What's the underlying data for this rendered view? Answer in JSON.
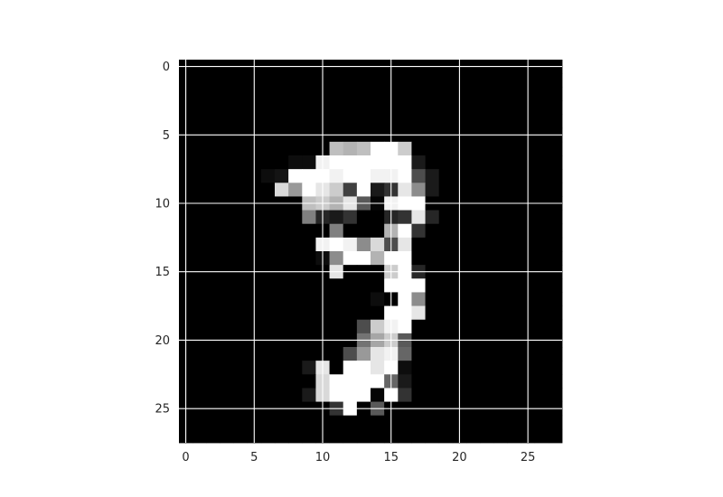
{
  "chart_data": {
    "type": "heatmap",
    "title": "",
    "xlabel": "",
    "ylabel": "",
    "colormap": "gray",
    "grid": true,
    "grid_color": "#ffffff",
    "xlim": [
      -0.5,
      27.5
    ],
    "ylim": [
      27.5,
      -0.5
    ],
    "xticks": [
      0,
      5,
      10,
      15,
      20,
      25
    ],
    "yticks": [
      0,
      5,
      10,
      15,
      20,
      25
    ],
    "xtick_labels": [
      "0",
      "5",
      "10",
      "15",
      "20",
      "25"
    ],
    "ytick_labels": [
      "0",
      "5",
      "10",
      "15",
      "20",
      "25"
    ],
    "values": [
      [
        0,
        0,
        0,
        0,
        0,
        0,
        0,
        0,
        0,
        0,
        0,
        0,
        0,
        0,
        0,
        0,
        0,
        0,
        0,
        0,
        0,
        0,
        0,
        0,
        0,
        0,
        0,
        0
      ],
      [
        0,
        0,
        0,
        0,
        0,
        0,
        0,
        0,
        0,
        0,
        0,
        0,
        0,
        0,
        0,
        0,
        0,
        0,
        0,
        0,
        0,
        0,
        0,
        0,
        0,
        0,
        0,
        0
      ],
      [
        0,
        0,
        0,
        0,
        0,
        0,
        0,
        0,
        0,
        0,
        0,
        0,
        0,
        0,
        0,
        0,
        0,
        0,
        0,
        0,
        0,
        0,
        0,
        0,
        0,
        0,
        0,
        0
      ],
      [
        0,
        0,
        0,
        0,
        0,
        0,
        0,
        0,
        0,
        0,
        0,
        0,
        0,
        0,
        0,
        0,
        0,
        0,
        0,
        0,
        0,
        0,
        0,
        0,
        0,
        0,
        0,
        0
      ],
      [
        0,
        0,
        0,
        0,
        0,
        0,
        0,
        0,
        0,
        0,
        0,
        0,
        0,
        0,
        0,
        0,
        0,
        0,
        0,
        0,
        0,
        0,
        0,
        0,
        0,
        0,
        0,
        0
      ],
      [
        0,
        0,
        0,
        0,
        0,
        0,
        0,
        0,
        0,
        0,
        0,
        0,
        0,
        0,
        0,
        0,
        0,
        0,
        0,
        0,
        0,
        0,
        0,
        0,
        0,
        0,
        0,
        0
      ],
      [
        0,
        0,
        0,
        0,
        0,
        0,
        0,
        0,
        0,
        0,
        0,
        0.75,
        0.7,
        0.75,
        1,
        1,
        0.8,
        0,
        0,
        0,
        0,
        0,
        0,
        0,
        0,
        0,
        0,
        0
      ],
      [
        0,
        0,
        0,
        0,
        0,
        0,
        0,
        0,
        0.05,
        0.05,
        0.95,
        1,
        1,
        1,
        1,
        1,
        1,
        0.1,
        0,
        0,
        0,
        0,
        0,
        0,
        0,
        0,
        0,
        0
      ],
      [
        0,
        0,
        0,
        0,
        0,
        0,
        0.05,
        0.08,
        1,
        1,
        1,
        0.95,
        1,
        1,
        0.95,
        0.95,
        1,
        0.3,
        0.1,
        0,
        0,
        0,
        0,
        0,
        0,
        0,
        0,
        0
      ],
      [
        0,
        0,
        0,
        0,
        0,
        0,
        0,
        0.85,
        0.6,
        1,
        0.9,
        0.8,
        0.25,
        1,
        0.1,
        0.2,
        0.9,
        0.55,
        0.1,
        0,
        0,
        0,
        0,
        0,
        0,
        0,
        0,
        0
      ],
      [
        0,
        0,
        0,
        0,
        0,
        0,
        0,
        0,
        0,
        0.75,
        0.8,
        0.7,
        0.9,
        0.35,
        0.02,
        0.95,
        1,
        1,
        0,
        0,
        0,
        0,
        0,
        0,
        0,
        0,
        0,
        0
      ],
      [
        0,
        0,
        0,
        0,
        0,
        0,
        0,
        0,
        0,
        0.5,
        0.15,
        0.1,
        0.2,
        0,
        0,
        0.15,
        0.2,
        0.9,
        0.15,
        0,
        0,
        0,
        0,
        0,
        0,
        0,
        0,
        0
      ],
      [
        0,
        0,
        0,
        0,
        0,
        0,
        0,
        0,
        0,
        0,
        0,
        0.5,
        0,
        0,
        0,
        0.7,
        1,
        0.2,
        0,
        0,
        0,
        0,
        0,
        0,
        0,
        0,
        0,
        0
      ],
      [
        0,
        0,
        0,
        0,
        0,
        0,
        0,
        0,
        0,
        0,
        0.95,
        1,
        0.95,
        0.55,
        0.85,
        0.3,
        0.9,
        0,
        0,
        0,
        0,
        0,
        0,
        0,
        0,
        0,
        0,
        0
      ],
      [
        0,
        0,
        0,
        0,
        0,
        0,
        0,
        0,
        0,
        0,
        0.05,
        0.55,
        1,
        1,
        0.7,
        1,
        1,
        0,
        0,
        0,
        0,
        0,
        0,
        0,
        0,
        0,
        0,
        0
      ],
      [
        0,
        0,
        0,
        0,
        0,
        0,
        0,
        0,
        0,
        0,
        0,
        0.9,
        0,
        0,
        0,
        0.8,
        1,
        0.15,
        0,
        0,
        0,
        0,
        0,
        0,
        0,
        0,
        0,
        0
      ],
      [
        0,
        0,
        0,
        0,
        0,
        0,
        0,
        0,
        0,
        0,
        0,
        0,
        0,
        0,
        0,
        1,
        1,
        1,
        0,
        0,
        0,
        0,
        0,
        0,
        0,
        0,
        0,
        0
      ],
      [
        0,
        0,
        0,
        0,
        0,
        0,
        0,
        0,
        0,
        0,
        0,
        0,
        0,
        0,
        0.05,
        0,
        1,
        0.55,
        0,
        0,
        0,
        0,
        0,
        0,
        0,
        0,
        0,
        0
      ],
      [
        0,
        0,
        0,
        0,
        0,
        0,
        0,
        0,
        0,
        0,
        0,
        0,
        0,
        0,
        0,
        1,
        1,
        0.9,
        0,
        0,
        0,
        0,
        0,
        0,
        0,
        0,
        0,
        0
      ],
      [
        0,
        0,
        0,
        0,
        0,
        0,
        0,
        0,
        0,
        0,
        0,
        0,
        0,
        0.3,
        0.8,
        0.95,
        1,
        0,
        0,
        0,
        0,
        0,
        0,
        0,
        0,
        0,
        0,
        0
      ],
      [
        0,
        0,
        0,
        0,
        0,
        0,
        0,
        0,
        0,
        0,
        0,
        0,
        0,
        0.45,
        0.65,
        0.8,
        0.35,
        0,
        0,
        0,
        0,
        0,
        0,
        0,
        0,
        0,
        0,
        0
      ],
      [
        0,
        0,
        0,
        0,
        0,
        0,
        0,
        0,
        0,
        0,
        0,
        0,
        0.3,
        0.6,
        0.9,
        0.95,
        0.4,
        0,
        0,
        0,
        0,
        0,
        0,
        0,
        0,
        0,
        0,
        0
      ],
      [
        0,
        0,
        0,
        0,
        0,
        0,
        0,
        0,
        0,
        0.1,
        0.9,
        0,
        1,
        1,
        0.9,
        1,
        0.05,
        0,
        0,
        0,
        0,
        0,
        0,
        0,
        0,
        0,
        0,
        0
      ],
      [
        0,
        0,
        0,
        0,
        0,
        0,
        0,
        0,
        0,
        0,
        0.85,
        1,
        1,
        1,
        1,
        0.4,
        0.1,
        0,
        0,
        0,
        0,
        0,
        0,
        0,
        0,
        0,
        0,
        0
      ],
      [
        0,
        0,
        0,
        0,
        0,
        0,
        0,
        0,
        0,
        0.1,
        0.85,
        1,
        1,
        1,
        0.02,
        1,
        0.2,
        0,
        0,
        0,
        0,
        0,
        0,
        0,
        0,
        0,
        0,
        0
      ],
      [
        0,
        0,
        0,
        0,
        0,
        0,
        0,
        0,
        0,
        0,
        0,
        0.2,
        1,
        0,
        0.35,
        0,
        0,
        0,
        0,
        0,
        0,
        0,
        0,
        0,
        0,
        0,
        0,
        0
      ],
      [
        0,
        0,
        0,
        0,
        0,
        0,
        0,
        0,
        0,
        0,
        0,
        0,
        0,
        0,
        0,
        0,
        0,
        0,
        0,
        0,
        0,
        0,
        0,
        0,
        0,
        0,
        0,
        0
      ],
      [
        0,
        0,
        0,
        0,
        0,
        0,
        0,
        0,
        0,
        0,
        0,
        0,
        0,
        0,
        0,
        0,
        0,
        0,
        0,
        0,
        0,
        0,
        0,
        0,
        0,
        0,
        0,
        0
      ]
    ]
  }
}
